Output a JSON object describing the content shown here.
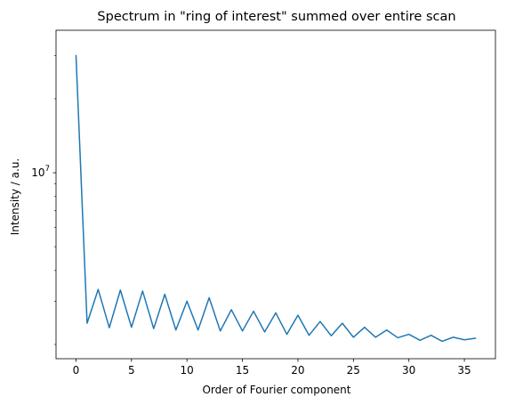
{
  "chart_data": {
    "type": "line",
    "title": "Spectrum in \"ring of interest\" summed over entire scan",
    "xlabel": "Order of Fourier component",
    "ylabel": "Intensity / a.u.",
    "yscale": "log",
    "xlim": [
      -1.8,
      37.8
    ],
    "ylim": [
      1750000,
      38000000
    ],
    "xticks": [
      0,
      5,
      10,
      15,
      20,
      25,
      30,
      35
    ],
    "xtick_labels": [
      "0",
      "5",
      "10",
      "15",
      "20",
      "25",
      "30",
      "35"
    ],
    "yticks_major": [
      10000000
    ],
    "ytick_major_labels": [
      "10^7"
    ],
    "yticks_minor": [
      2000000,
      3000000,
      4000000,
      5000000,
      6000000,
      7000000,
      8000000,
      9000000,
      20000000,
      30000000
    ],
    "grid": false,
    "line_color": "#1f77b4",
    "series": [
      {
        "x": [
          0,
          1,
          2,
          3,
          4,
          5,
          6,
          7,
          8,
          9,
          10,
          11,
          12,
          13,
          14,
          15,
          16,
          17,
          18,
          19,
          20,
          21,
          22,
          23,
          24,
          25,
          26,
          27,
          28,
          29,
          30,
          31,
          32,
          33,
          34,
          35,
          36
        ],
        "values": [
          30000000,
          2440000,
          3350000,
          2340000,
          3330000,
          2350000,
          3300000,
          2320000,
          3200000,
          2290000,
          3000000,
          2290000,
          3100000,
          2270000,
          2770000,
          2270000,
          2730000,
          2250000,
          2690000,
          2200000,
          2630000,
          2180000,
          2480000,
          2170000,
          2440000,
          2140000,
          2350000,
          2140000,
          2290000,
          2130000,
          2200000,
          2080000,
          2180000,
          2060000,
          2140000,
          2090000,
          2120000
        ]
      }
    ]
  }
}
